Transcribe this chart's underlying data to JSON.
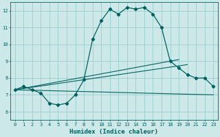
{
  "title": "",
  "xlabel": "Humidex (Indice chaleur)",
  "ylabel": "",
  "background_color": "#cce8e8",
  "grid_color": "#99cccc",
  "line_color": "#006060",
  "xlim": [
    -0.5,
    23.5
  ],
  "ylim": [
    5.5,
    12.5
  ],
  "xticks": [
    0,
    1,
    2,
    3,
    4,
    5,
    6,
    7,
    8,
    9,
    10,
    11,
    12,
    13,
    14,
    15,
    16,
    17,
    18,
    19,
    20,
    21,
    22,
    23
  ],
  "yticks": [
    6,
    7,
    8,
    9,
    10,
    11,
    12
  ],
  "main_x": [
    0,
    1,
    2,
    3,
    4,
    5,
    6,
    7,
    8,
    9,
    10,
    11,
    12,
    13,
    14,
    15,
    16,
    17,
    18,
    19,
    20,
    21,
    22,
    23
  ],
  "main_y": [
    7.3,
    7.5,
    7.3,
    7.1,
    6.5,
    6.4,
    6.5,
    7.0,
    7.9,
    10.3,
    11.4,
    12.1,
    11.8,
    12.2,
    12.1,
    12.2,
    11.8,
    11.0,
    9.0,
    8.6,
    8.2,
    8.0,
    8.0,
    7.5
  ],
  "line2_x": [
    0,
    23
  ],
  "line2_y": [
    7.3,
    7.0
  ],
  "line3_x": [
    0,
    20
  ],
  "line3_y": [
    7.3,
    8.8
  ],
  "line4_x": [
    0,
    19
  ],
  "line4_y": [
    7.3,
    9.1
  ]
}
